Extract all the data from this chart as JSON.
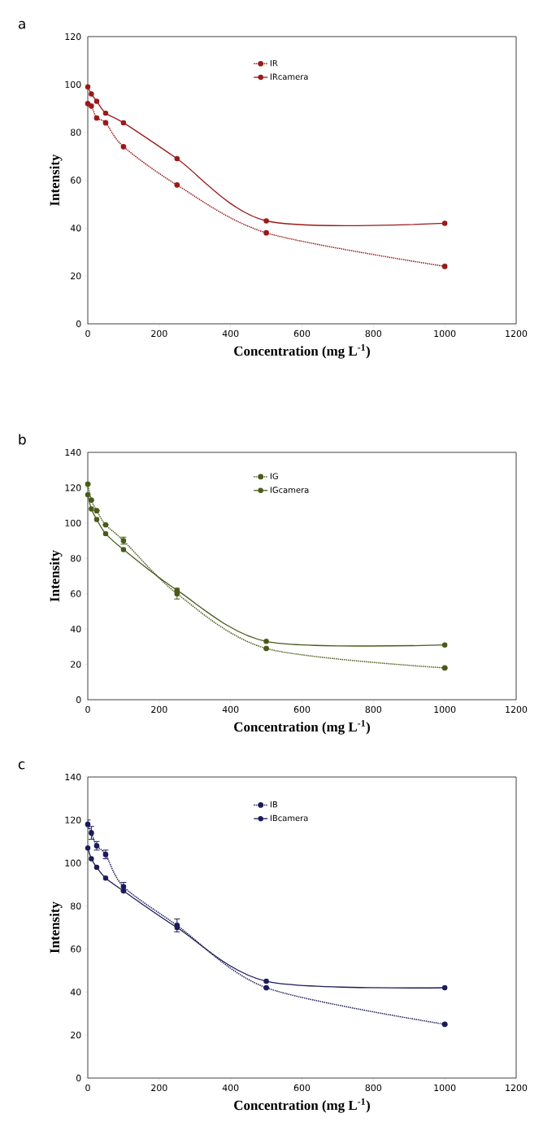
{
  "chart_data": [
    {
      "type": "line",
      "title": "a",
      "xlabel": "Concentration (mg L$^{-1}$)",
      "ylabel": "Intensity",
      "x": [
        0,
        10,
        25,
        50,
        100,
        250,
        500,
        1000
      ],
      "xlim": [
        0,
        1200
      ],
      "xticks": [
        0,
        200,
        400,
        600,
        800,
        1000,
        1200
      ],
      "ylim": [
        0,
        120
      ],
      "yticks": [
        0,
        20,
        40,
        60,
        80,
        100,
        120
      ],
      "legend": "top",
      "marker": "circle",
      "grid": false,
      "series": [
        {
          "name": "IR",
          "color": "#9a1a1a",
          "line_style": "dotted",
          "values": [
            92,
            91,
            86,
            84,
            74,
            58,
            38,
            24
          ]
        },
        {
          "name": "IRcamera",
          "color": "#9a1a1a",
          "line_style": "solid",
          "values": [
            99,
            96,
            93,
            88,
            84,
            69,
            43,
            42
          ]
        }
      ]
    },
    {
      "type": "line",
      "title": "b",
      "xlabel": "Concentration (mg L$^{-1}$)",
      "ylabel": "Intensity",
      "x": [
        0,
        10,
        25,
        50,
        100,
        250,
        500,
        1000
      ],
      "xlim": [
        0,
        1200
      ],
      "xticks": [
        0,
        200,
        400,
        600,
        800,
        1000,
        1200
      ],
      "ylim": [
        0,
        140
      ],
      "yticks": [
        0,
        20,
        40,
        60,
        80,
        100,
        120,
        140
      ],
      "legend": "top",
      "marker": "circle",
      "grid": false,
      "series": [
        {
          "name": "IG",
          "color": "#4a5a1c",
          "line_style": "dotted",
          "values": [
            122,
            113,
            107,
            99,
            90,
            60,
            29,
            18
          ],
          "errors": [
            null,
            null,
            null,
            null,
            2,
            3,
            null,
            null
          ]
        },
        {
          "name": "IGcamera",
          "color": "#4a5a1c",
          "line_style": "solid",
          "values": [
            116,
            108,
            102,
            94,
            85,
            62,
            33,
            31
          ]
        }
      ]
    },
    {
      "type": "line",
      "title": "c",
      "xlabel": "Concentration (mg L$^{-1}$)",
      "ylabel": "Intensity",
      "x": [
        0,
        10,
        25,
        50,
        100,
        250,
        500,
        1000
      ],
      "xlim": [
        0,
        1200
      ],
      "xticks": [
        0,
        200,
        400,
        600,
        800,
        1000,
        1200
      ],
      "ylim": [
        0,
        140
      ],
      "yticks": [
        0,
        20,
        40,
        60,
        80,
        100,
        120,
        140
      ],
      "legend": "top",
      "marker": "circle",
      "grid": false,
      "series": [
        {
          "name": "IB",
          "color": "#1c1c5a",
          "line_style": "dotted",
          "values": [
            118,
            114,
            108,
            104,
            89,
            71,
            42,
            25
          ],
          "errors": [
            2,
            3,
            2,
            2,
            2,
            3,
            null,
            null
          ]
        },
        {
          "name": "IBcamera",
          "color": "#1c1c5a",
          "line_style": "solid",
          "values": [
            107,
            102,
            98,
            93,
            87,
            70,
            45,
            42
          ]
        }
      ]
    }
  ]
}
